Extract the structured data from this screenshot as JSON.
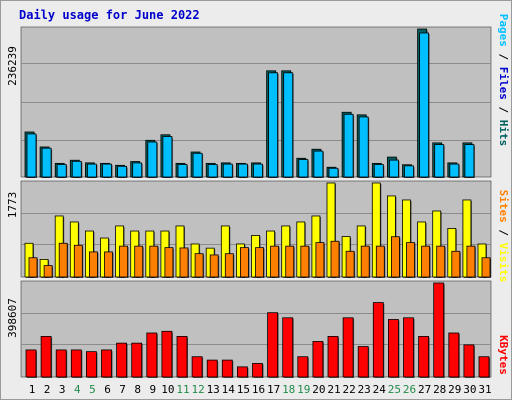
{
  "title": "Daily usage for June 2022",
  "colors": {
    "background": "#ececec",
    "plot_bg": "#c0c0c0",
    "grid": "#8c8c8c",
    "hits": "#006060",
    "files": "#00a0ff",
    "files_bar": "#00bfff",
    "pages": "#00c0ff",
    "visits": "#ffff00",
    "sites": "#ff8000",
    "kbytes": "#ff0000",
    "weekend": "#228b4a",
    "day_text": "#000000"
  },
  "right_labels": {
    "top": [
      "Pages",
      "Files",
      "Hits"
    ],
    "middle": [
      "Sites",
      "Visits"
    ],
    "bottom": [
      "KBytes"
    ],
    "separator": " / "
  },
  "chart_data": [
    {
      "type": "bar",
      "panel": "hits-files",
      "ylabel": "236239",
      "ylim": [
        0,
        236239
      ],
      "categories": [
        "1",
        "2",
        "3",
        "4",
        "5",
        "6",
        "7",
        "8",
        "9",
        "10",
        "11",
        "12",
        "13",
        "14",
        "15",
        "16",
        "17",
        "18",
        "19",
        "20",
        "21",
        "22",
        "23",
        "24",
        "25",
        "26",
        "27",
        "28",
        "29",
        "30",
        "31"
      ],
      "series": [
        {
          "name": "Hits",
          "values": [
            71860,
            47940,
            21770,
            26750,
            22550,
            21770,
            18630,
            24710,
            58570,
            67420,
            21770,
            39900,
            21770,
            22550,
            21770,
            22550,
            169510,
            169510,
            29890,
            44310,
            15570,
            103350,
            99230,
            21770,
            31800,
            19600,
            236239,
            54500,
            22550,
            54500,
            0
          ]
        },
        {
          "name": "Files",
          "values": [
            68730,
            45950,
            19920,
            24980,
            20590,
            20590,
            17020,
            22420,
            55800,
            64600,
            19920,
            37820,
            19920,
            20590,
            20590,
            20590,
            166330,
            166330,
            27800,
            41280,
            13890,
            100060,
            95830,
            19920,
            26920,
            17740,
            229860,
            51720,
            20590,
            51720,
            0
          ]
        }
      ]
    },
    {
      "type": "bar",
      "panel": "sites-visits",
      "ylabel": "1773",
      "ylim": [
        0,
        1773
      ],
      "categories": [
        "1",
        "2",
        "3",
        "4",
        "5",
        "6",
        "7",
        "8",
        "9",
        "10",
        "11",
        "12",
        "13",
        "14",
        "15",
        "16",
        "17",
        "18",
        "19",
        "20",
        "21",
        "22",
        "23",
        "24",
        "25",
        "26",
        "27",
        "28",
        "29",
        "30",
        "31"
      ],
      "series": [
        {
          "name": "Visits",
          "values": [
            636,
            332,
            1151,
            1038,
            867,
            735,
            963,
            867,
            867,
            867,
            963,
            623,
            544,
            963,
            623,
            784,
            867,
            963,
            1038,
            1151,
            1773,
            763,
            963,
            1773,
            1529,
            1453,
            1038,
            1245,
            916,
            1453,
            623
          ]
        },
        {
          "name": "Sites",
          "values": [
            363,
            216,
            636,
            598,
            473,
            473,
            582,
            582,
            582,
            554,
            548,
            440,
            416,
            439,
            554,
            554,
            582,
            582,
            582,
            649,
            674,
            485,
            582,
            582,
            760,
            649,
            582,
            582,
            485,
            582,
            363
          ]
        }
      ]
    },
    {
      "type": "bar",
      "panel": "kbytes",
      "ylabel": "398607",
      "ylim": [
        0,
        398607
      ],
      "categories": [
        "1",
        "2",
        "3",
        "4",
        "5",
        "6",
        "7",
        "8",
        "9",
        "10",
        "11",
        "12",
        "13",
        "14",
        "15",
        "16",
        "17",
        "18",
        "19",
        "20",
        "21",
        "22",
        "23",
        "24",
        "25",
        "26",
        "27",
        "28",
        "29",
        "30",
        "31"
      ],
      "series": [
        {
          "name": "KBytes",
          "values": [
            114830,
            172190,
            114830,
            114830,
            107590,
            114830,
            143520,
            143520,
            186580,
            193820,
            172190,
            86030,
            71670,
            71670,
            43040,
            57380,
            272710,
            251110,
            86030,
            150690,
            172190,
            251110,
            129160,
            315680,
            243860,
            251110,
            172190,
            398607,
            186580,
            136280,
            86030
          ]
        }
      ]
    }
  ],
  "x_labels": [
    {
      "text": "1",
      "weekend": false
    },
    {
      "text": "2",
      "weekend": false
    },
    {
      "text": "3",
      "weekend": false
    },
    {
      "text": "4",
      "weekend": true
    },
    {
      "text": "5",
      "weekend": true
    },
    {
      "text": "6",
      "weekend": false
    },
    {
      "text": "7",
      "weekend": false
    },
    {
      "text": "8",
      "weekend": false
    },
    {
      "text": "9",
      "weekend": false
    },
    {
      "text": "10",
      "weekend": false
    },
    {
      "text": "11",
      "weekend": true
    },
    {
      "text": "12",
      "weekend": true
    },
    {
      "text": "13",
      "weekend": false
    },
    {
      "text": "14",
      "weekend": false
    },
    {
      "text": "15",
      "weekend": false
    },
    {
      "text": "16",
      "weekend": false
    },
    {
      "text": "17",
      "weekend": false
    },
    {
      "text": "18",
      "weekend": true
    },
    {
      "text": "19",
      "weekend": true
    },
    {
      "text": "20",
      "weekend": false
    },
    {
      "text": "21",
      "weekend": false
    },
    {
      "text": "22",
      "weekend": false
    },
    {
      "text": "23",
      "weekend": false
    },
    {
      "text": "24",
      "weekend": false
    },
    {
      "text": "25",
      "weekend": true
    },
    {
      "text": "26",
      "weekend": true
    },
    {
      "text": "27",
      "weekend": false
    },
    {
      "text": "28",
      "weekend": false
    },
    {
      "text": "29",
      "weekend": false
    },
    {
      "text": "30",
      "weekend": false
    },
    {
      "text": "31",
      "weekend": false
    }
  ]
}
